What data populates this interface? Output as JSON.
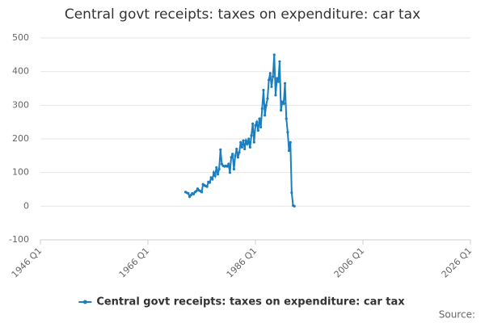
{
  "chart_data": {
    "type": "line",
    "title": "Central govt receipts: taxes on expenditure: car tax",
    "x": [
      "1973 Q1",
      "1973 Q2",
      "1973 Q3",
      "1973 Q4",
      "1974 Q1",
      "1974 Q2",
      "1974 Q3",
      "1974 Q4",
      "1975 Q1",
      "1975 Q2",
      "1975 Q3",
      "1975 Q4",
      "1976 Q1",
      "1976 Q2",
      "1976 Q3",
      "1976 Q4",
      "1977 Q1",
      "1977 Q2",
      "1977 Q3",
      "1977 Q4",
      "1978 Q1",
      "1978 Q2",
      "1978 Q3",
      "1978 Q4",
      "1979 Q1",
      "1979 Q2",
      "1979 Q3",
      "1979 Q4",
      "1980 Q1",
      "1980 Q2",
      "1980 Q3",
      "1980 Q4",
      "1981 Q1",
      "1981 Q2",
      "1981 Q3",
      "1981 Q4",
      "1982 Q1",
      "1982 Q2",
      "1982 Q3",
      "1982 Q4",
      "1983 Q1",
      "1983 Q2",
      "1983 Q3",
      "1983 Q4",
      "1984 Q1",
      "1984 Q2",
      "1984 Q3",
      "1984 Q4",
      "1985 Q1",
      "1985 Q2",
      "1985 Q3",
      "1985 Q4",
      "1986 Q1",
      "1986 Q2",
      "1986 Q3",
      "1986 Q4",
      "1987 Q1",
      "1987 Q2",
      "1987 Q3",
      "1987 Q4",
      "1988 Q1",
      "1988 Q2",
      "1988 Q3",
      "1988 Q4",
      "1989 Q1",
      "1989 Q2",
      "1989 Q3",
      "1989 Q4",
      "1990 Q1",
      "1990 Q2",
      "1990 Q3",
      "1990 Q4",
      "1991 Q1",
      "1991 Q2",
      "1991 Q3",
      "1991 Q4",
      "1992 Q1",
      "1992 Q2",
      "1992 Q3",
      "1992 Q4",
      "1993 Q1",
      "1993 Q2"
    ],
    "series": [
      {
        "name": "Central govt receipts: taxes on expenditure: car tax",
        "color": "#1a7fbf",
        "values": [
          42,
          40,
          38,
          28,
          33,
          38,
          36,
          42,
          45,
          52,
          47,
          45,
          42,
          65,
          62,
          60,
          58,
          72,
          70,
          85,
          80,
          100,
          90,
          115,
          95,
          110,
          168,
          125,
          120,
          118,
          120,
          118,
          125,
          100,
          145,
          155,
          110,
          150,
          170,
          145,
          160,
          190,
          175,
          195,
          170,
          195,
          185,
          200,
          175,
          210,
          245,
          190,
          240,
          250,
          225,
          260,
          235,
          290,
          345,
          270,
          300,
          320,
          375,
          395,
          355,
          385,
          450,
          330,
          380,
          370,
          430,
          285,
          310,
          305,
          365,
          260,
          220,
          165,
          190,
          40,
          2,
          0
        ]
      }
    ],
    "xlim": [
      "1946 Q1",
      "2026 Q1"
    ],
    "xticks": [
      "1946 Q1",
      "1966 Q1",
      "1986 Q1",
      "2006 Q1",
      "2026 Q1"
    ],
    "ylim": [
      -100,
      500
    ],
    "yticks": [
      -100,
      0,
      100,
      200,
      300,
      400,
      500
    ],
    "grid": true,
    "legend": "bottom",
    "source": "Source:"
  }
}
